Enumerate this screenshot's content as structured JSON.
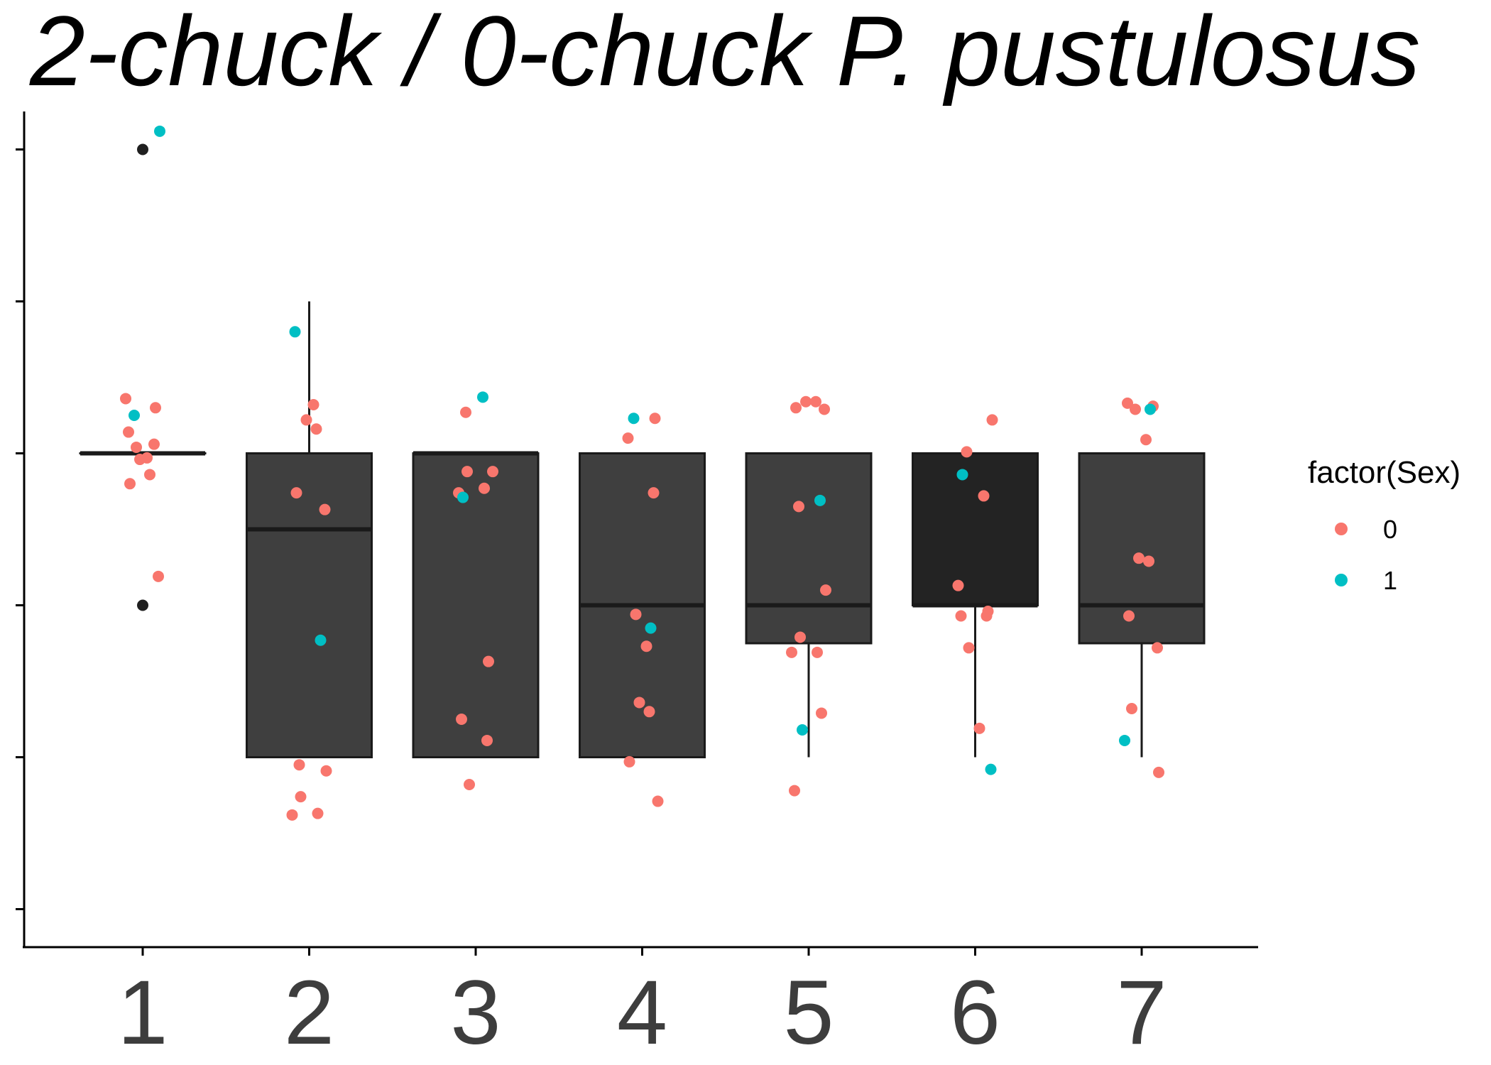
{
  "chart_data": {
    "type": "box",
    "title": "2-chuck / 0-chuck P. pustulosus",
    "xlabel": "",
    "ylabel": "",
    "categories": [
      "1",
      "2",
      "3",
      "4",
      "5",
      "6",
      "7"
    ],
    "y_ticks_labeled": false,
    "ylim": [
      -1.25,
      4.25
    ],
    "grid": false,
    "legend": {
      "title": "factor(Sex)",
      "position": "right",
      "entries": [
        {
          "label": "0",
          "color": "#F8766D"
        },
        {
          "label": "1",
          "color": "#00BFC4"
        }
      ]
    },
    "boxes": [
      {
        "category": "1",
        "q1": 2.0,
        "median": 2.0,
        "q3": 2.0,
        "whisker_low": 2.0,
        "whisker_high": 2.0,
        "fill": "#3b3b3b",
        "outliers": [
          4.0,
          1.0
        ]
      },
      {
        "category": "2",
        "q1": 0.0,
        "median": 1.5,
        "q3": 2.0,
        "whisker_low": 0.0,
        "whisker_high": 3.0,
        "fill": "#3f3f3f",
        "outliers": []
      },
      {
        "category": "3",
        "q1": 0.0,
        "median": 2.0,
        "q3": 2.0,
        "whisker_low": 0.0,
        "whisker_high": 2.0,
        "fill": "#3f3f3f",
        "outliers": []
      },
      {
        "category": "4",
        "q1": 0.0,
        "median": 1.0,
        "q3": 2.0,
        "whisker_low": 0.0,
        "whisker_high": 2.0,
        "fill": "#3f3f3f",
        "outliers": []
      },
      {
        "category": "5",
        "q1": 0.75,
        "median": 1.0,
        "q3": 2.0,
        "whisker_low": 0.0,
        "whisker_high": 2.0,
        "fill": "#3f3f3f",
        "outliers": []
      },
      {
        "category": "6",
        "q1": 1.0,
        "median": 1.0,
        "q3": 2.0,
        "whisker_low": 0.0,
        "whisker_high": 2.0,
        "fill": "#232323",
        "outliers": []
      },
      {
        "category": "7",
        "q1": 0.75,
        "median": 1.0,
        "q3": 2.0,
        "whisker_low": 0.0,
        "whisker_high": 2.0,
        "fill": "#3f3f3f",
        "outliers": []
      }
    ],
    "outlier_color": "#1f1f1f",
    "series": [
      {
        "name": "0",
        "color": "#F8766D",
        "points": [
          {
            "x": 1,
            "y": 2.36
          },
          {
            "x": 1,
            "y": 2.3
          },
          {
            "x": 1,
            "y": 2.14
          },
          {
            "x": 1,
            "y": 2.06
          },
          {
            "x": 1,
            "y": 2.04
          },
          {
            "x": 1,
            "y": 1.97
          },
          {
            "x": 1,
            "y": 1.96
          },
          {
            "x": 1,
            "y": 1.86
          },
          {
            "x": 1,
            "y": 1.8
          },
          {
            "x": 1,
            "y": 1.19
          },
          {
            "x": 2,
            "y": 2.32
          },
          {
            "x": 2,
            "y": 2.22
          },
          {
            "x": 2,
            "y": 2.16
          },
          {
            "x": 2,
            "y": 1.74
          },
          {
            "x": 2,
            "y": 1.63
          },
          {
            "x": 2,
            "y": -0.05
          },
          {
            "x": 2,
            "y": -0.09
          },
          {
            "x": 2,
            "y": -0.26
          },
          {
            "x": 2,
            "y": -0.37
          },
          {
            "x": 2,
            "y": -0.38
          },
          {
            "x": 3,
            "y": 2.27
          },
          {
            "x": 3,
            "y": 1.88
          },
          {
            "x": 3,
            "y": 1.88
          },
          {
            "x": 3,
            "y": 1.77
          },
          {
            "x": 3,
            "y": 1.74
          },
          {
            "x": 3,
            "y": 0.63
          },
          {
            "x": 3,
            "y": 0.25
          },
          {
            "x": 3,
            "y": 0.11
          },
          {
            "x": 3,
            "y": -0.18
          },
          {
            "x": 4,
            "y": 2.23
          },
          {
            "x": 4,
            "y": 2.1
          },
          {
            "x": 4,
            "y": 1.74
          },
          {
            "x": 4,
            "y": 0.94
          },
          {
            "x": 4,
            "y": 0.73
          },
          {
            "x": 4,
            "y": 0.36
          },
          {
            "x": 4,
            "y": 0.3
          },
          {
            "x": 4,
            "y": -0.03
          },
          {
            "x": 4,
            "y": -0.29
          },
          {
            "x": 5,
            "y": 2.34
          },
          {
            "x": 5,
            "y": 2.34
          },
          {
            "x": 5,
            "y": 2.3
          },
          {
            "x": 5,
            "y": 2.29
          },
          {
            "x": 5,
            "y": 1.65
          },
          {
            "x": 5,
            "y": 1.1
          },
          {
            "x": 5,
            "y": 0.79
          },
          {
            "x": 5,
            "y": 0.69
          },
          {
            "x": 5,
            "y": 0.69
          },
          {
            "x": 5,
            "y": 0.29
          },
          {
            "x": 5,
            "y": -0.22
          },
          {
            "x": 6,
            "y": 2.22
          },
          {
            "x": 6,
            "y": 2.01
          },
          {
            "x": 6,
            "y": 1.72
          },
          {
            "x": 6,
            "y": 1.13
          },
          {
            "x": 6,
            "y": 0.96
          },
          {
            "x": 6,
            "y": 0.93
          },
          {
            "x": 6,
            "y": 0.93
          },
          {
            "x": 6,
            "y": 0.72
          },
          {
            "x": 6,
            "y": 0.19
          },
          {
            "x": 7,
            "y": 2.33
          },
          {
            "x": 7,
            "y": 2.31
          },
          {
            "x": 7,
            "y": 2.29
          },
          {
            "x": 7,
            "y": 2.09
          },
          {
            "x": 7,
            "y": 1.31
          },
          {
            "x": 7,
            "y": 1.29
          },
          {
            "x": 7,
            "y": 0.93
          },
          {
            "x": 7,
            "y": 0.72
          },
          {
            "x": 7,
            "y": 0.32
          },
          {
            "x": 7,
            "y": -0.1
          }
        ]
      },
      {
        "name": "1",
        "color": "#00BFC4",
        "points": [
          {
            "x": 1,
            "y": 4.12
          },
          {
            "x": 1,
            "y": 2.25
          },
          {
            "x": 2,
            "y": 2.8
          },
          {
            "x": 2,
            "y": 0.77
          },
          {
            "x": 3,
            "y": 2.37
          },
          {
            "x": 3,
            "y": 1.71
          },
          {
            "x": 4,
            "y": 2.23
          },
          {
            "x": 4,
            "y": 0.85
          },
          {
            "x": 5,
            "y": 1.69
          },
          {
            "x": 5,
            "y": 0.18
          },
          {
            "x": 6,
            "y": 1.86
          },
          {
            "x": 6,
            "y": -0.08
          },
          {
            "x": 7,
            "y": 2.29
          },
          {
            "x": 7,
            "y": 0.11
          }
        ]
      }
    ]
  }
}
